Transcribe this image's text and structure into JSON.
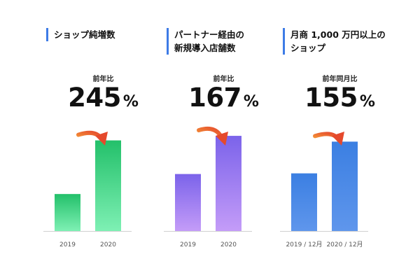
{
  "colors": {
    "accent": "#3d7be6",
    "arrow_start": "#f7a23a",
    "arrow_end": "#e5492c",
    "green_top": "#23c06a",
    "green_bottom": "#7ef0b4",
    "purple_top": "#7b63ea",
    "purple_bottom": "#c49cf8",
    "blue_top": "#3b7fe2",
    "blue_bottom": "#5f96ec"
  },
  "chart_data": [
    {
      "type": "bar",
      "title": "ショップ純増数",
      "yoy_label": "前年比",
      "value_text": "245",
      "unit": "%",
      "categories": [
        "2019",
        "2020"
      ],
      "values": [
        100,
        245
      ],
      "ylim": [
        0,
        265
      ],
      "grid": false,
      "legend": "none",
      "gradient": [
        "green_top",
        "green_bottom"
      ]
    },
    {
      "type": "bar",
      "title": "パートナー経由の\n新規導入店舗数",
      "yoy_label": "前年比",
      "value_text": "167",
      "unit": "%",
      "categories": [
        "2019",
        "2020"
      ],
      "values": [
        100,
        167
      ],
      "ylim": [
        0,
        172
      ],
      "grid": false,
      "legend": "none",
      "gradient": [
        "purple_top",
        "purple_bottom"
      ]
    },
    {
      "type": "bar",
      "title": "月商 1,000 万円以上の\nショップ",
      "yoy_label": "前年同月比",
      "value_text": "155",
      "unit": "%",
      "categories": [
        "2019 / 12月",
        "2020 / 12月"
      ],
      "values": [
        100,
        155
      ],
      "ylim": [
        0,
        170
      ],
      "grid": false,
      "legend": "none",
      "gradient": [
        "blue_top",
        "blue_bottom"
      ]
    }
  ]
}
